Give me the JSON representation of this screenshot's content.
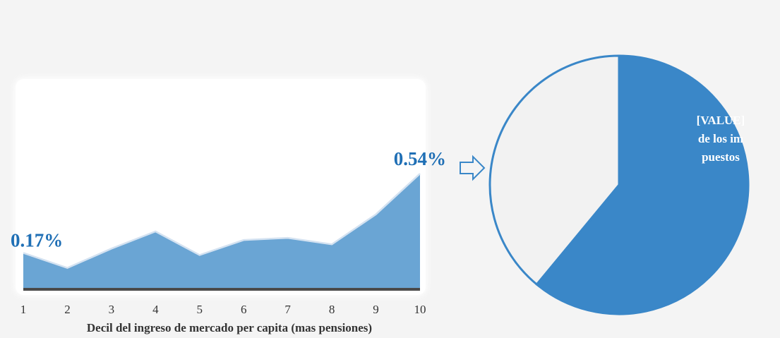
{
  "chart_data": [
    {
      "type": "area",
      "xlabel": "Decil del ingreso de mercado per capita (mas pensiones)",
      "categories": [
        "1",
        "2",
        "3",
        "4",
        "5",
        "6",
        "7",
        "8",
        "9",
        "10"
      ],
      "values": [
        0.17,
        0.1,
        0.19,
        0.27,
        0.16,
        0.23,
        0.24,
        0.21,
        0.35,
        0.54
      ],
      "value_labels": [
        "0.17%",
        null,
        null,
        null,
        null,
        null,
        null,
        null,
        null,
        "0.54%"
      ],
      "color": "#6aa5d4",
      "ylim": [
        0,
        0.55
      ]
    },
    {
      "type": "pie",
      "label": "[VALUE] de los impuestos",
      "values": [
        61,
        39
      ],
      "colors": [
        "#3a87c8",
        "#f2f2f2"
      ]
    }
  ]
}
